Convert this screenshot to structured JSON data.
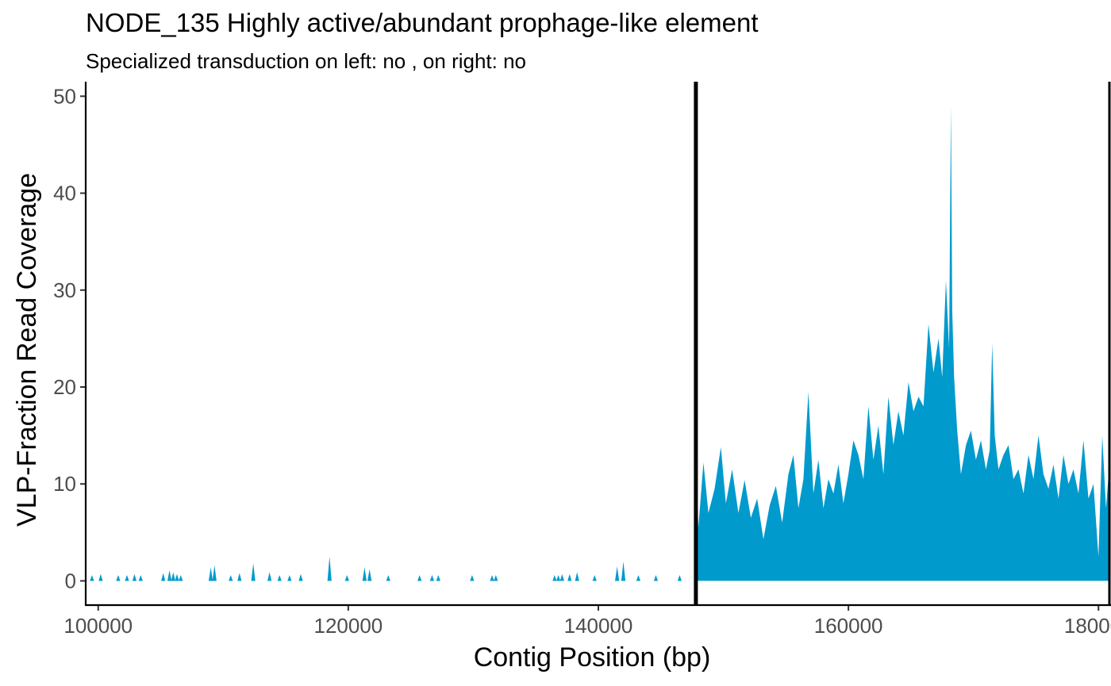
{
  "chart_data": {
    "type": "area",
    "title": "NODE_135 Highly active/abundant prophage-like element",
    "subtitle": "Specialized transduction on left: no , on right: no",
    "xlabel": "Contig Position (bp)",
    "ylabel": "VLP-Fraction Read Coverage",
    "xlim": [
      99000,
      181000
    ],
    "ylim": [
      -2.5,
      51.5
    ],
    "x_ticks": [
      100000,
      120000,
      140000,
      160000,
      180000
    ],
    "x_tick_labels": [
      "100000",
      "120000",
      "140000",
      "160000",
      "180000"
    ],
    "y_ticks": [
      0,
      10,
      20,
      30,
      40,
      50
    ],
    "y_tick_labels": [
      "0",
      "10",
      "20",
      "30",
      "40",
      "50"
    ],
    "fill_color": "#009ACD",
    "grid": false,
    "boundaries": [
      147800,
      181000
    ],
    "series": [
      {
        "x": [
          99500,
          100200,
          101600,
          102300,
          102900,
          103400,
          105200,
          105700,
          106000,
          106300,
          106600,
          109000,
          109300,
          110600,
          111300,
          112400,
          113700,
          114500,
          115300,
          116200,
          118500,
          119900,
          121300,
          121700,
          123200,
          125700,
          126700,
          127200,
          129900,
          131500,
          131800,
          136500,
          136800,
          137100,
          137700,
          138300,
          139700,
          141500,
          142000,
          143200,
          144600,
          146500,
          147800,
          148000,
          148400,
          148800,
          149300,
          149800,
          150200,
          150700,
          151200,
          151700,
          152200,
          152700,
          153200,
          153700,
          154200,
          154700,
          155200,
          155600,
          156000,
          156400,
          156800,
          157200,
          157600,
          158000,
          158400,
          158800,
          159200,
          159600,
          160000,
          160400,
          160800,
          161200,
          161600,
          162000,
          162400,
          162800,
          163200,
          163600,
          164000,
          164400,
          164800,
          165200,
          165600,
          166000,
          166400,
          166800,
          167200,
          167500,
          167800,
          168050,
          168200,
          168300,
          168450,
          168700,
          169000,
          169400,
          169800,
          170200,
          170600,
          171000,
          171300,
          171500,
          171700,
          172000,
          172400,
          172800,
          173200,
          173600,
          174000,
          174400,
          174800,
          175200,
          175600,
          176000,
          176400,
          176800,
          177200,
          177600,
          178000,
          178400,
          178800,
          179200,
          179600,
          180000,
          180300,
          180600,
          180900
        ],
        "y": [
          0.6,
          0.7,
          0.6,
          0.6,
          0.7,
          0.6,
          0.8,
          1.1,
          0.9,
          0.7,
          0.6,
          1.4,
          1.6,
          0.6,
          0.8,
          1.8,
          0.9,
          0.6,
          0.6,
          0.7,
          2.5,
          0.6,
          1.4,
          1.2,
          0.6,
          0.6,
          0.6,
          0.6,
          0.6,
          0.6,
          0.6,
          0.6,
          0.6,
          0.7,
          0.7,
          0.9,
          0.6,
          1.5,
          2.0,
          0.6,
          0.6,
          0.6,
          13.0,
          5.5,
          12.2,
          7.0,
          9.5,
          13.8,
          8.0,
          11.5,
          7.0,
          10.4,
          6.5,
          8.5,
          4.3,
          7.8,
          9.8,
          6.0,
          11.0,
          13.0,
          7.5,
          10.5,
          19.5,
          9.0,
          12.5,
          7.5,
          10.5,
          9.0,
          12.0,
          8.0,
          11.0,
          14.5,
          13.0,
          10.5,
          18.0,
          12.5,
          16.0,
          11.0,
          19.0,
          14.0,
          17.5,
          15.0,
          20.5,
          17.5,
          19.0,
          18.0,
          26.5,
          21.5,
          25.0,
          21.0,
          31.0,
          24.0,
          49.0,
          28.0,
          21.0,
          15.5,
          11.0,
          14.0,
          15.5,
          12.5,
          14.5,
          11.5,
          13.5,
          24.5,
          15.0,
          11.5,
          13.0,
          14.0,
          10.5,
          11.5,
          9.0,
          13.0,
          10.5,
          15.0,
          11.0,
          9.5,
          12.0,
          8.5,
          13.0,
          10.0,
          11.5,
          9.0,
          14.5,
          8.5,
          10.0,
          2.5,
          15.0,
          7.5,
          12.5
        ]
      }
    ]
  }
}
